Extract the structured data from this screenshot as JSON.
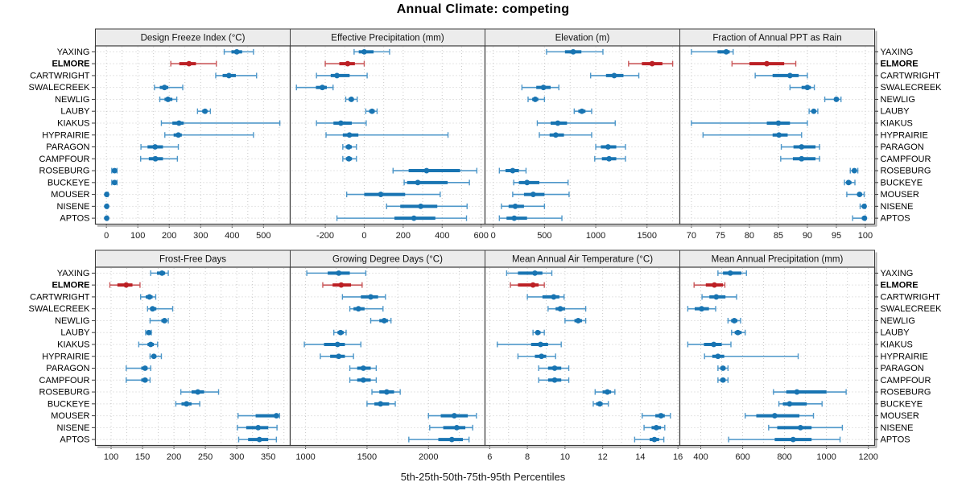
{
  "chart_data": {
    "type": "trellis-dotplot-percentiles",
    "title": "Annual Climate: competing",
    "caption": "5th-25th-50th-75th-95th Percentiles",
    "percentiles": [
      "5th",
      "25th",
      "50th",
      "75th",
      "95th"
    ],
    "stations": [
      "YAXING",
      "ELMORE",
      "CARTWRIGHT",
      "SWALECREEK",
      "NEWLIG",
      "LAUBY",
      "KIAKUS",
      "HYPRAIRIE",
      "PARAGON",
      "CAMPFOUR",
      "ROSEBURG",
      "BUCKEYE",
      "MOUSER",
      "NISENE",
      "APTOS"
    ],
    "highlight_station": "ELMORE",
    "legend_position": "none",
    "grid": "dotted",
    "colors": {
      "blue_point": "#1874b2",
      "blue_whisker": "#4e97c9",
      "red_point": "#bc2025",
      "red_whisker": "#c9585a",
      "strip_bg": "#ececec",
      "panel_border": "#3c3c3c",
      "gridline": "#c9c9c9",
      "text": "#1a1a1a",
      "shadow": "#b0b0b0"
    },
    "panels": [
      {
        "title": "Design Freeze Index (°C)",
        "row": 0,
        "col": 0,
        "xlim": [
          -35,
          585
        ],
        "ticks": [
          0,
          100,
          200,
          300,
          400,
          500
        ],
        "grid_step": 50,
        "values": {
          "YAXING": [
            375,
            398,
            415,
            432,
            468
          ],
          "ELMORE": [
            205,
            232,
            263,
            285,
            350
          ],
          "CARTWRIGHT": [
            348,
            370,
            390,
            412,
            478
          ],
          "SWALECREEK": [
            153,
            170,
            185,
            197,
            243
          ],
          "NEWLIG": [
            170,
            185,
            196,
            210,
            224
          ],
          "LAUBY": [
            290,
            305,
            314,
            321,
            331
          ],
          "KIAKUS": [
            175,
            210,
            231,
            246,
            552
          ],
          "HYPRAIRIE": [
            186,
            214,
            229,
            240,
            468
          ],
          "PARAGON": [
            110,
            131,
            155,
            180,
            229
          ],
          "CAMPFOUR": [
            109,
            135,
            156,
            180,
            226
          ],
          "ROSEBURG": [
            17,
            22,
            26,
            29,
            34
          ],
          "BUCKEYE": [
            17,
            22,
            26,
            29,
            34
          ],
          "MOUSER": [
            0,
            0,
            1,
            2,
            5
          ],
          "NISENE": [
            0,
            0,
            1,
            2,
            4
          ],
          "APTOS": [
            0,
            0,
            1,
            2,
            4
          ]
        }
      },
      {
        "title": "Effective Precipitation (mm)",
        "row": 0,
        "col": 1,
        "xlim": [
          -380,
          620
        ],
        "ticks": [
          -200,
          0,
          200,
          400,
          600
        ],
        "grid_step": 100,
        "values": {
          "YAXING": [
            -52,
            -28,
            0,
            48,
            130
          ],
          "ELMORE": [
            -200,
            -128,
            -85,
            -48,
            0
          ],
          "CARTWRIGHT": [
            -245,
            -172,
            -140,
            -75,
            15
          ],
          "SWALECREEK": [
            -348,
            -248,
            -215,
            -192,
            -160
          ],
          "NEWLIG": [
            -95,
            -80,
            -66,
            -54,
            -36
          ],
          "LAUBY": [
            8,
            25,
            40,
            54,
            66
          ],
          "KIAKUS": [
            -245,
            -158,
            -120,
            -64,
            10
          ],
          "HYPRAIRIE": [
            -196,
            -110,
            -76,
            -30,
            430
          ],
          "PARAGON": [
            -110,
            -95,
            -80,
            -64,
            -40
          ],
          "CAMPFOUR": [
            -110,
            -94,
            -79,
            -63,
            -40
          ],
          "ROSEBURG": [
            148,
            228,
            320,
            492,
            578
          ],
          "BUCKEYE": [
            205,
            220,
            275,
            428,
            540
          ],
          "MOUSER": [
            -90,
            0,
            85,
            210,
            390
          ],
          "NISENE": [
            115,
            185,
            290,
            375,
            528
          ],
          "APTOS": [
            -140,
            155,
            255,
            365,
            525
          ]
        }
      },
      {
        "title": "Elevation (m)",
        "row": 0,
        "col": 2,
        "xlim": [
          -80,
          1820
        ],
        "ticks": [
          0,
          500,
          1000,
          1500
        ],
        "grid_step": 250,
        "values": {
          "YAXING": [
            520,
            700,
            780,
            860,
            1070
          ],
          "ELMORE": [
            1320,
            1450,
            1550,
            1650,
            1750
          ],
          "CARTWRIGHT": [
            950,
            1100,
            1180,
            1270,
            1420
          ],
          "SWALECREEK": [
            280,
            420,
            490,
            560,
            640
          ],
          "NEWLIG": [
            340,
            380,
            410,
            440,
            500
          ],
          "LAUBY": [
            790,
            830,
            865,
            900,
            960
          ],
          "KIAKUS": [
            430,
            560,
            630,
            720,
            1190
          ],
          "HYPRAIRIE": [
            450,
            550,
            610,
            690,
            960
          ],
          "PARAGON": [
            1000,
            1050,
            1120,
            1200,
            1290
          ],
          "CAMPFOUR": [
            990,
            1060,
            1130,
            1200,
            1290
          ],
          "ROSEBURG": [
            60,
            120,
            190,
            250,
            320
          ],
          "BUCKEYE": [
            200,
            250,
            330,
            450,
            730
          ],
          "MOUSER": [
            190,
            300,
            390,
            500,
            740
          ],
          "NISENE": [
            80,
            150,
            215,
            300,
            500
          ],
          "APTOS": [
            60,
            130,
            205,
            330,
            670
          ]
        }
      },
      {
        "title": "Fraction of Annual PPT as Rain",
        "row": 0,
        "col": 3,
        "xlim": [
          68,
          101.6
        ],
        "ticks": [
          70,
          75,
          80,
          85,
          90,
          95,
          100
        ],
        "grid_step": 5,
        "values": {
          "YAXING": [
            70,
            74.5,
            76,
            76.6,
            77.2
          ],
          "ELMORE": [
            77,
            80,
            83,
            86,
            88
          ],
          "CARTWRIGHT": [
            81,
            84,
            87,
            88.5,
            90
          ],
          "SWALECREEK": [
            87,
            89,
            90,
            90.6,
            91.2
          ],
          "NEWLIG": [
            93,
            94.6,
            95,
            95.4,
            95.8
          ],
          "LAUBY": [
            90.3,
            90.8,
            91.1,
            91.4,
            91.8
          ],
          "KIAKUS": [
            70,
            83,
            85,
            87,
            90
          ],
          "HYPRAIRIE": [
            72,
            84,
            85.1,
            86.6,
            89
          ],
          "PARAGON": [
            85.5,
            87.6,
            89,
            91.4,
            92.1
          ],
          "CAMPFOUR": [
            85.4,
            87.5,
            89,
            91.4,
            92.1
          ],
          "ROSEBURG": [
            97.4,
            97.8,
            98.1,
            98.4,
            98.7
          ],
          "BUCKEYE": [
            96.4,
            96.8,
            97.1,
            97.6,
            98.2
          ],
          "MOUSER": [
            96.8,
            98.6,
            99,
            99.4,
            99.8
          ],
          "NISENE": [
            99.1,
            99.6,
            99.8,
            99.95,
            100
          ],
          "APTOS": [
            97.8,
            99.4,
            99.85,
            100,
            100
          ]
        }
      },
      {
        "title": "Frost-Free Days",
        "row": 1,
        "col": 0,
        "xlim": [
          75,
          385
        ],
        "ticks": [
          100,
          150,
          200,
          250,
          300,
          350
        ],
        "grid_step": 25,
        "values": {
          "YAXING": [
            163,
            173,
            181,
            186,
            191
          ],
          "ELMORE": [
            98,
            110,
            124,
            134,
            146
          ],
          "CARTWRIGHT": [
            147,
            155,
            161,
            166,
            171
          ],
          "SWALECREEK": [
            158,
            162,
            166,
            172,
            198
          ],
          "NEWLIG": [
            162,
            180,
            185,
            188,
            191
          ],
          "LAUBY": [
            155,
            158,
            160,
            162,
            164
          ],
          "KIAKUS": [
            144,
            158,
            163,
            168,
            174
          ],
          "HYPRAIRIE": [
            162,
            165,
            168,
            172,
            180
          ],
          "PARAGON": [
            124,
            148,
            154,
            158,
            163
          ],
          "CAMPFOUR": [
            124,
            148,
            154,
            158,
            162
          ],
          "ROSEBURG": [
            211,
            228,
            238,
            248,
            271
          ],
          "BUCKEYE": [
            203,
            212,
            220,
            228,
            241
          ],
          "MOUSER": [
            302,
            330,
            363,
            366,
            368
          ],
          "NISENE": [
            301,
            315,
            334,
            350,
            364
          ],
          "APTOS": [
            303,
            318,
            336,
            350,
            363
          ]
        }
      },
      {
        "title": "Growing Degree Days (°C)",
        "row": 1,
        "col": 1,
        "xlim": [
          875,
          2460
        ],
        "ticks": [
          1000,
          1500,
          2000
        ],
        "grid_step": 250,
        "values": {
          "YAXING": [
            1010,
            1180,
            1270,
            1360,
            1490
          ],
          "ELMORE": [
            1140,
            1220,
            1290,
            1370,
            1460
          ],
          "CARTWRIGHT": [
            1300,
            1450,
            1530,
            1590,
            1650
          ],
          "SWALECREEK": [
            1360,
            1390,
            1430,
            1480,
            1630
          ],
          "NEWLIG": [
            1530,
            1600,
            1640,
            1670,
            1695
          ],
          "LAUBY": [
            1230,
            1260,
            1285,
            1310,
            1330
          ],
          "KIAKUS": [
            990,
            1150,
            1260,
            1320,
            1450
          ],
          "HYPRAIRIE": [
            1120,
            1200,
            1270,
            1320,
            1390
          ],
          "PARAGON": [
            1360,
            1420,
            1470,
            1530,
            1575
          ],
          "CAMPFOUR": [
            1360,
            1420,
            1470,
            1530,
            1575
          ],
          "ROSEBURG": [
            1540,
            1600,
            1660,
            1720,
            1770
          ],
          "BUCKEYE": [
            1500,
            1560,
            1610,
            1680,
            1730
          ],
          "MOUSER": [
            2000,
            2100,
            2210,
            2320,
            2390
          ],
          "NISENE": [
            2010,
            2120,
            2230,
            2300,
            2360
          ],
          "APTOS": [
            1840,
            2080,
            2190,
            2280,
            2330
          ]
        }
      },
      {
        "title": "Mean Annual Air Temperature (°C)",
        "row": 1,
        "col": 2,
        "xlim": [
          5.75,
          16.1
        ],
        "ticks": [
          6,
          8,
          10,
          12,
          14,
          16
        ],
        "grid_step": 1,
        "values": {
          "YAXING": [
            6.9,
            7.5,
            8.4,
            8.8,
            9.3
          ],
          "ELMORE": [
            7.1,
            7.5,
            8.3,
            8.6,
            8.9
          ],
          "CARTWRIGHT": [
            8.0,
            8.8,
            9.4,
            9.7,
            9.95
          ],
          "SWALECREEK": [
            9.1,
            9.5,
            9.75,
            10.0,
            11.1
          ],
          "NEWLIG": [
            10.0,
            10.5,
            10.7,
            10.9,
            11.1
          ],
          "LAUBY": [
            8.3,
            8.45,
            8.55,
            8.7,
            8.9
          ],
          "KIAKUS": [
            6.4,
            8.2,
            8.7,
            9.1,
            9.8
          ],
          "HYPRAIRIE": [
            7.5,
            8.4,
            8.75,
            9.0,
            9.5
          ],
          "PARAGON": [
            8.6,
            9.1,
            9.45,
            9.8,
            10.2
          ],
          "CAMPFOUR": [
            8.6,
            9.1,
            9.45,
            9.8,
            10.2
          ],
          "ROSEBURG": [
            11.6,
            12.0,
            12.25,
            12.45,
            12.65
          ],
          "BUCKEYE": [
            11.5,
            11.65,
            11.85,
            12.0,
            12.3
          ],
          "MOUSER": [
            14.1,
            14.8,
            15.1,
            15.3,
            15.6
          ],
          "NISENE": [
            14.2,
            14.6,
            14.85,
            15.1,
            15.3
          ],
          "APTOS": [
            13.7,
            14.5,
            14.75,
            15.0,
            15.25
          ]
        }
      },
      {
        "title": "Mean Annual Precipitation (mm)",
        "row": 1,
        "col": 3,
        "xlim": [
          300,
          1230
        ],
        "ticks": [
          400,
          600,
          800,
          1000,
          1200
        ],
        "grid_step": 100,
        "values": {
          "YAXING": [
            482,
            506,
            541,
            594,
            618
          ],
          "ELMORE": [
            368,
            424,
            465,
            506,
            515
          ],
          "CARTWRIGHT": [
            406,
            441,
            474,
            518,
            571
          ],
          "SWALECREEK": [
            338,
            371,
            404,
            439,
            471
          ],
          "NEWLIG": [
            530,
            545,
            560,
            575,
            590
          ],
          "LAUBY": [
            547,
            562,
            577,
            595,
            612
          ],
          "KIAKUS": [
            338,
            415,
            462,
            500,
            544
          ],
          "HYPRAIRIE": [
            418,
            455,
            482,
            512,
            865
          ],
          "PARAGON": [
            482,
            493,
            506,
            518,
            530
          ],
          "CAMPFOUR": [
            482,
            493,
            506,
            518,
            530
          ],
          "ROSEBURG": [
            747,
            808,
            859,
            1000,
            1094
          ],
          "BUCKEYE": [
            773,
            792,
            824,
            906,
            979
          ],
          "MOUSER": [
            612,
            665,
            753,
            871,
            938
          ],
          "NISENE": [
            724,
            765,
            876,
            929,
            1076
          ],
          "APTOS": [
            533,
            753,
            841,
            929,
            1065
          ]
        }
      }
    ]
  }
}
